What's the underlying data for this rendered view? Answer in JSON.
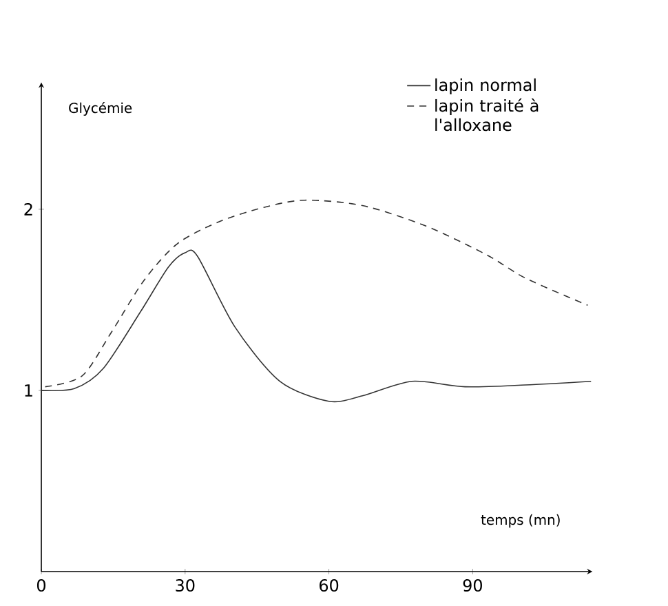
{
  "chart_data": {
    "type": "line",
    "xlabel": "temps (mn)",
    "ylabel": "Glycémie",
    "xlim": [
      0,
      115
    ],
    "ylim": [
      0,
      2.7
    ],
    "xticks": [
      0,
      30,
      60,
      90
    ],
    "yticks": [
      1,
      2
    ],
    "legend": "top right",
    "grid": false,
    "marker": "none",
    "series": [
      {
        "name": "lapin normal",
        "color": "#333333",
        "line_style": "solid",
        "x": [
          0,
          6.9,
          12.9,
          20.6,
          26.5,
          30,
          32.6,
          40.4,
          49.8,
          60,
          67,
          77.3,
          88.4,
          101,
          114.7
        ],
        "values": [
          1.0,
          1.01,
          1.12,
          1.43,
          1.68,
          1.76,
          1.74,
          1.35,
          1.05,
          0.94,
          0.97,
          1.05,
          1.02,
          1.03,
          1.05
        ]
      },
      {
        "name": "lapin traité à l'alloxane",
        "color": "#333333",
        "line_style": "dashed",
        "x": [
          0.8,
          8.5,
          14.6,
          21.5,
          28.4,
          37,
          46.4,
          55,
          67,
          80,
          92.8,
          101,
          114
        ],
        "values": [
          1.02,
          1.08,
          1.32,
          1.61,
          1.81,
          1.93,
          2.01,
          2.05,
          2.02,
          1.91,
          1.75,
          1.62,
          1.47
        ]
      }
    ]
  }
}
